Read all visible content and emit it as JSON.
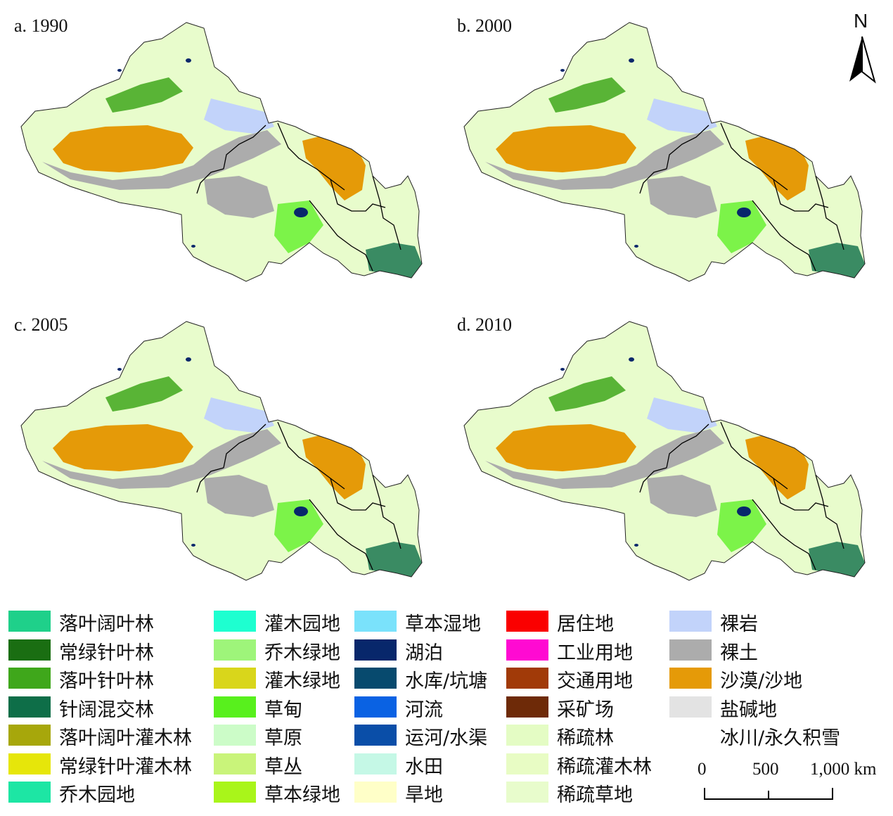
{
  "panels": [
    {
      "label": "a. 1990"
    },
    {
      "label": "b. 2000"
    },
    {
      "label": "c. 2005"
    },
    {
      "label": "d. 2010"
    }
  ],
  "north_arrow": {
    "label": "N"
  },
  "scale_bar": {
    "ticks": [
      "0",
      "500",
      "1,000 km"
    ]
  },
  "legend": [
    {
      "label": "落叶阔叶林",
      "color": "#1fd08a"
    },
    {
      "label": "常绿针叶林",
      "color": "#1a6e12"
    },
    {
      "label": "落叶针叶林",
      "color": "#3fa71b"
    },
    {
      "label": "针阔混交林",
      "color": "#0e6e48"
    },
    {
      "label": "落叶阔叶灌木林",
      "color": "#a7a70b"
    },
    {
      "label": "常绿针叶灌木林",
      "color": "#e6e60a"
    },
    {
      "label": "乔木园地",
      "color": "#1de6a4"
    },
    {
      "label": "灌木园地",
      "color": "#1effd0"
    },
    {
      "label": "乔木绿地",
      "color": "#9ef57a"
    },
    {
      "label": "灌木绿地",
      "color": "#d9d61b"
    },
    {
      "label": "草甸",
      "color": "#58f01d"
    },
    {
      "label": "草原",
      "color": "#ccfcc8"
    },
    {
      "label": "草丛",
      "color": "#c9f47a"
    },
    {
      "label": "草本绿地",
      "color": "#a9f51a"
    },
    {
      "label": "草本湿地",
      "color": "#7ae2fb"
    },
    {
      "label": "湖泊",
      "color": "#08276b"
    },
    {
      "label": "水库/坑塘",
      "color": "#074a6e"
    },
    {
      "label": "河流",
      "color": "#0a62e3"
    },
    {
      "label": "运河/水渠",
      "color": "#0a4ea8"
    },
    {
      "label": "水田",
      "color": "#c5f8e6"
    },
    {
      "label": "旱地",
      "color": "#ffffc8"
    },
    {
      "label": "居住地",
      "color": "#fa0000"
    },
    {
      "label": "工业用地",
      "color": "#ff0ad2"
    },
    {
      "label": "交通用地",
      "color": "#a13a08"
    },
    {
      "label": "采矿场",
      "color": "#6e2a08"
    },
    {
      "label": "稀疏林",
      "color": "#e4fcc4"
    },
    {
      "label": "稀疏灌木林",
      "color": "#e8fcc4"
    },
    {
      "label": "稀疏草地",
      "color": "#e8fccc"
    },
    {
      "label": "裸岩",
      "color": "#c2d3fa"
    },
    {
      "label": "裸土",
      "color": "#acacac"
    },
    {
      "label": "沙漠/沙地",
      "color": "#e59a08"
    },
    {
      "label": "盐碱地",
      "color": "#e3e3e3"
    },
    {
      "label": "冰川/永久积雪",
      "color": "#ffffff"
    }
  ]
}
